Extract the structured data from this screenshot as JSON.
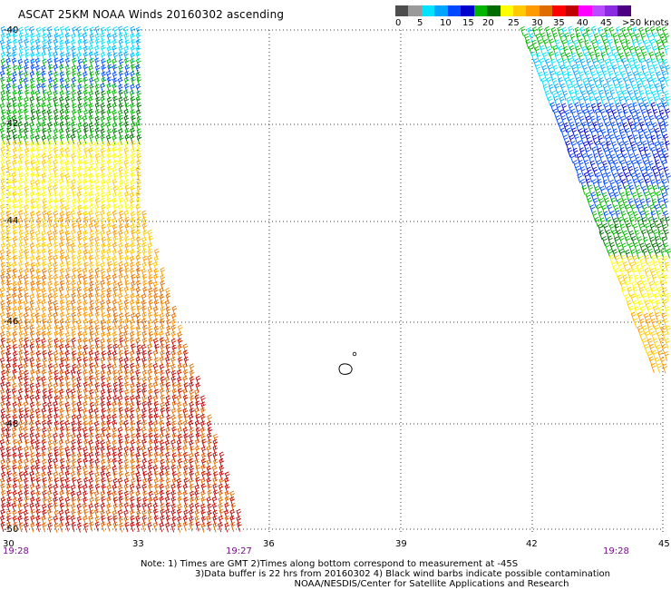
{
  "title": "ASCAT 25KM NOAA Winds 20160302 ascending",
  "colorbar": {
    "colors": [
      "#4d4d4d",
      "#9a9a9a",
      "#00e3ff",
      "#00a5ff",
      "#0048ff",
      "#0000cd",
      "#00b600",
      "#006c00",
      "#ffff00",
      "#ffcb00",
      "#ff9a00",
      "#e06c00",
      "#ff0000",
      "#c00000",
      "#ff00ff",
      "#b84bff",
      "#8a2be2",
      "#4b0082"
    ],
    "labels": [
      "0",
      "5",
      "10",
      "15",
      "20",
      "25",
      "30",
      "35",
      "40",
      "45",
      ">50 knots"
    ]
  },
  "lat_labels": [
    "-40",
    "-42",
    "-44",
    "-46",
    "-48",
    "-50"
  ],
  "lon_labels": [
    "30",
    "33",
    "36",
    "39",
    "42",
    "45"
  ],
  "times": [
    "19:28",
    "19:27",
    "19:28"
  ],
  "notes": [
    "Note: 1) Times are GMT 2)Times along bottom correspond to measurement at -45S",
    "3)Data buffer is 22 hrs from 20160302 4) Black wind barbs indicate possible contamination",
    "NOAA/NESDIS/Center for Satellite Applications and Research"
  ]
}
